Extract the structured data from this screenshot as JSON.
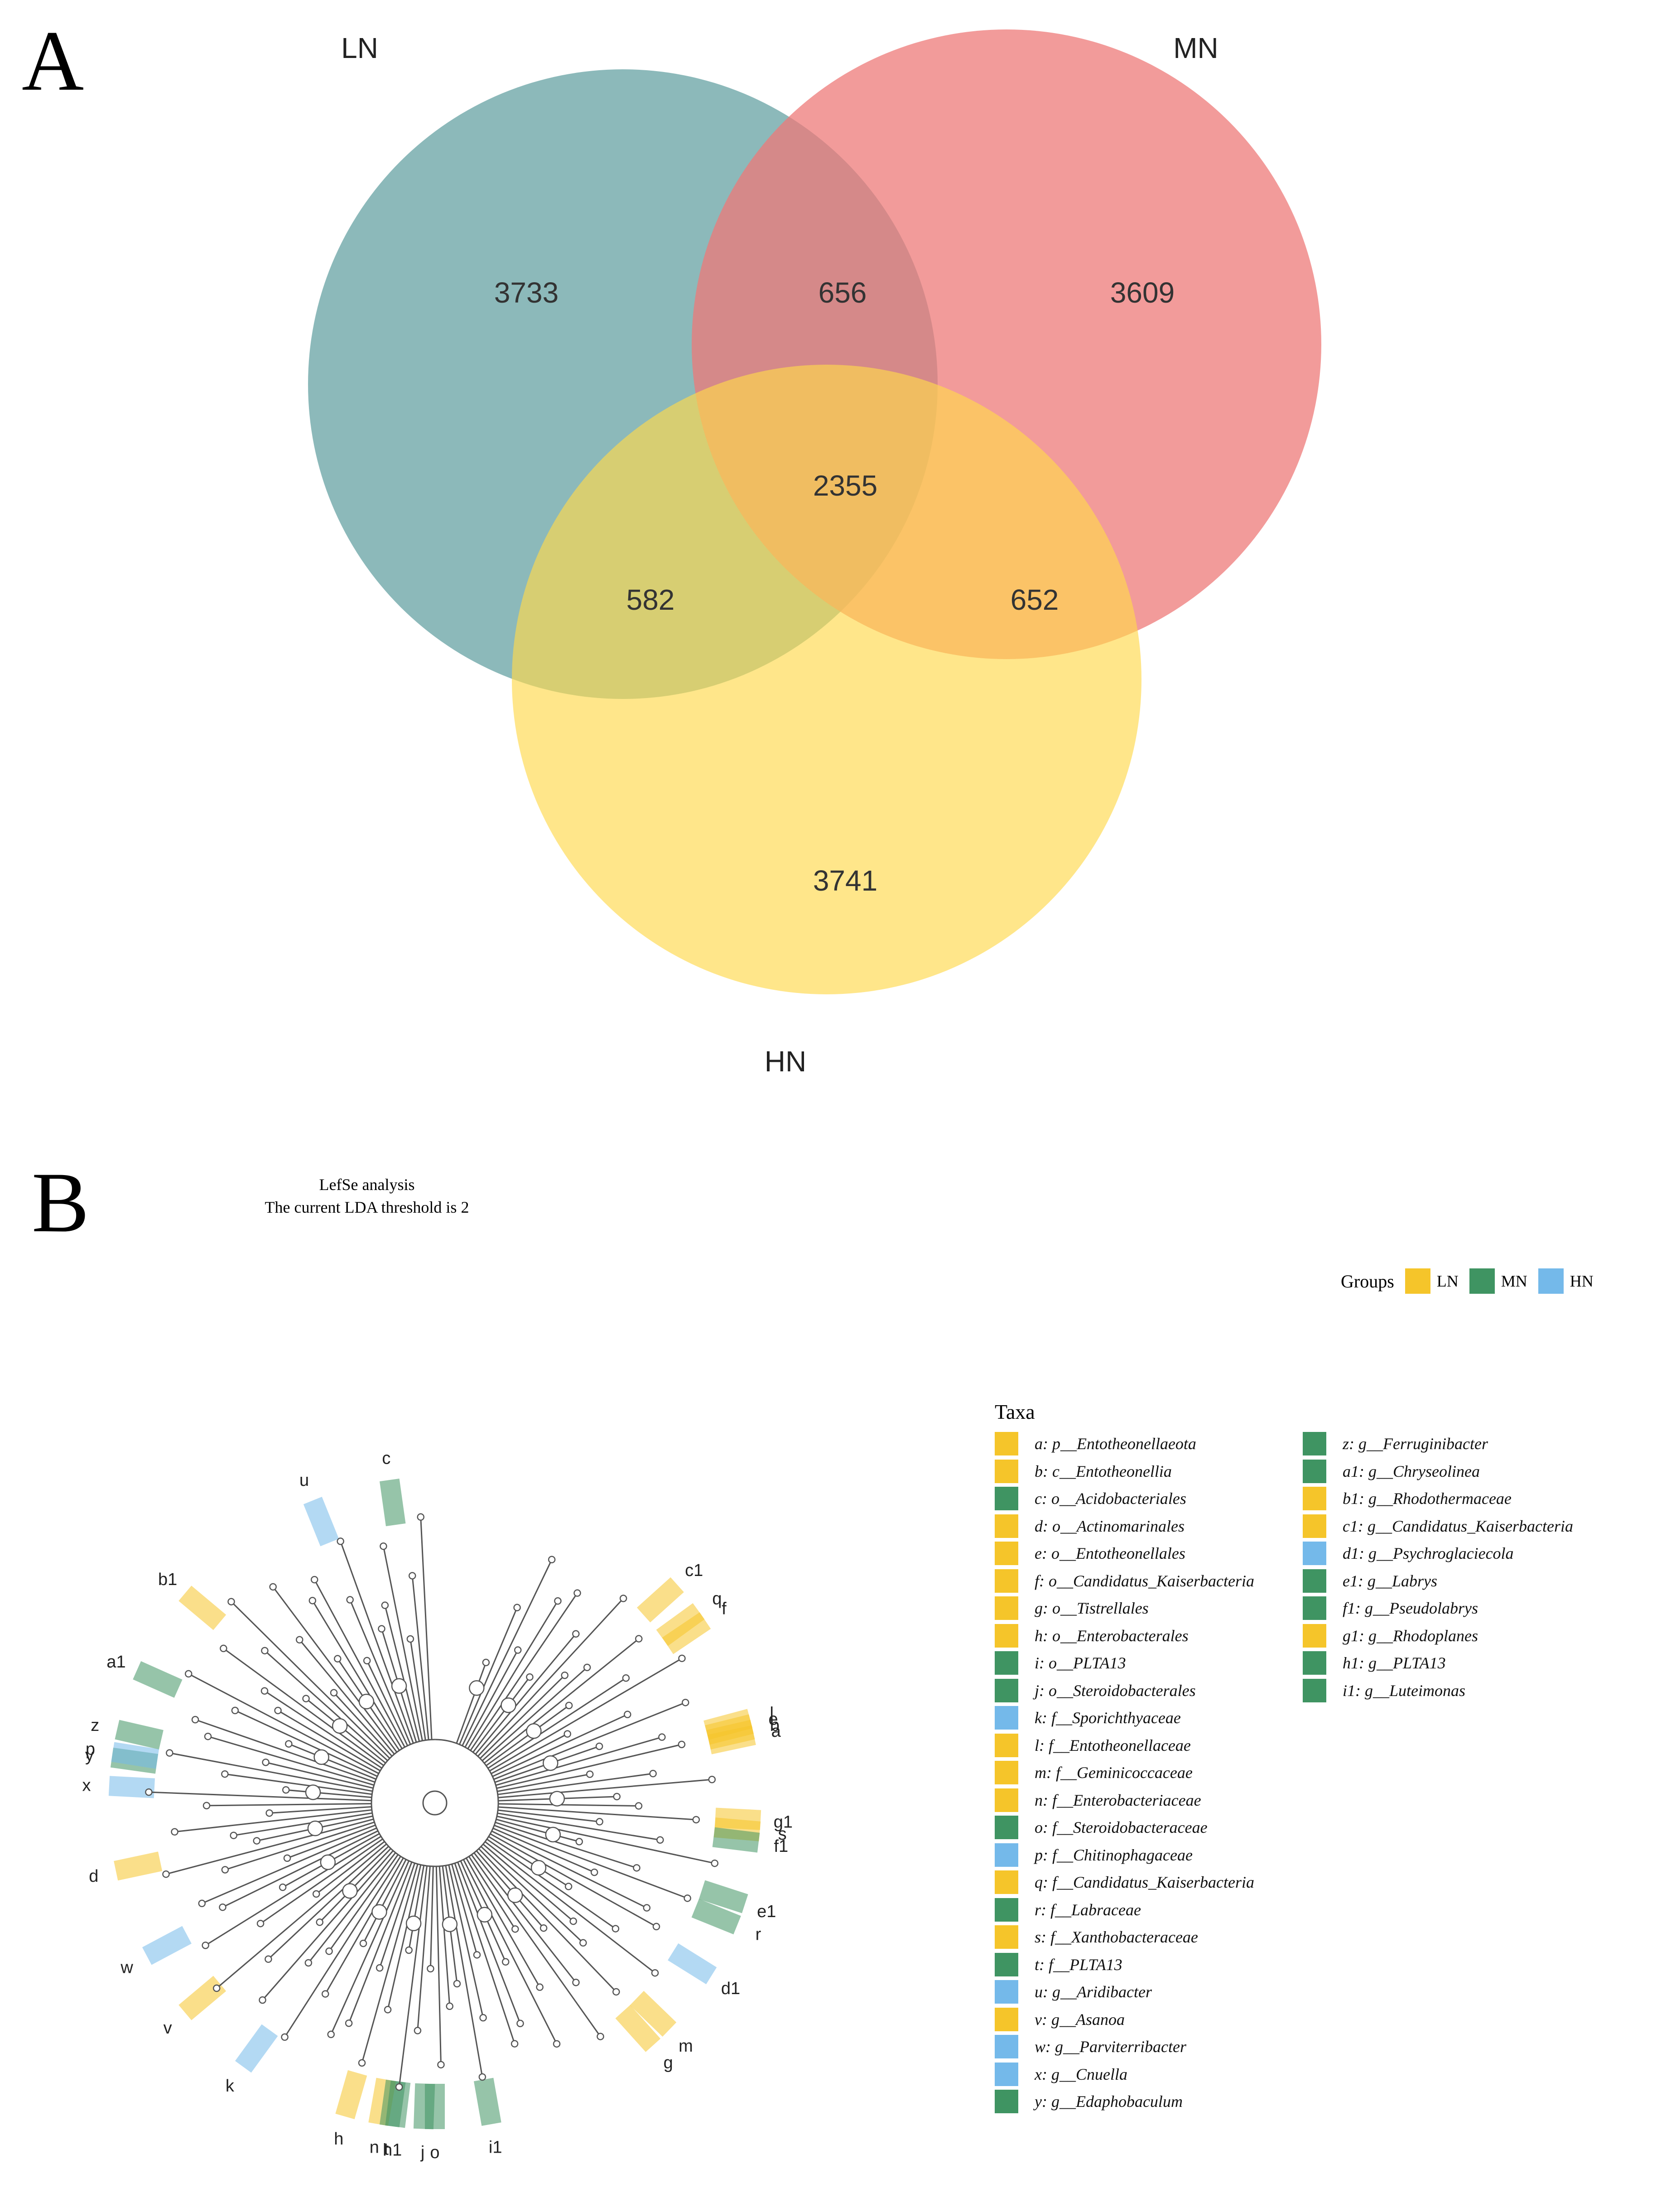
{
  "panel_a": {
    "letter": "A",
    "sets": [
      {
        "name": "LN",
        "color": "#5f9ea0"
      },
      {
        "name": "MN",
        "color": "#ee7a78"
      },
      {
        "name": "HN",
        "color": "#ffd84c"
      }
    ],
    "counts": {
      "ln_only": "3733",
      "ln_mn": "656",
      "mn_only": "3609",
      "all": "2355",
      "ln_hn": "582",
      "mn_hn": "652",
      "hn_only": "3741"
    }
  },
  "panel_b": {
    "letter": "B",
    "title_line1": "LefSe analysis",
    "title_line2": "The current LDA threshold is 2",
    "groups_label": "Groups",
    "groups": [
      {
        "name": "LN",
        "color": "#f5c52a"
      },
      {
        "name": "MN",
        "color": "#3f9462"
      },
      {
        "name": "HN",
        "color": "#74b9ea"
      }
    ],
    "taxa_title": "Taxa",
    "taxa": [
      {
        "label": "a: p__Entotheonellaeota",
        "group": "LN"
      },
      {
        "label": "b: c__Entotheonellia",
        "group": "LN"
      },
      {
        "label": "c: o__Acidobacteriales",
        "group": "MN"
      },
      {
        "label": "d: o__Actinomarinales",
        "group": "LN"
      },
      {
        "label": "e: o__Entotheonellales",
        "group": "LN"
      },
      {
        "label": "f: o__Candidatus_Kaiserbacteria",
        "group": "LN"
      },
      {
        "label": "g: o__Tistrellales",
        "group": "LN"
      },
      {
        "label": "h: o__Enterobacterales",
        "group": "LN"
      },
      {
        "label": "i: o__PLTA13",
        "group": "MN"
      },
      {
        "label": "j: o__Steroidobacterales",
        "group": "MN"
      },
      {
        "label": "k: f__Sporichthyaceae",
        "group": "HN"
      },
      {
        "label": "l: f__Entotheonellaceae",
        "group": "LN"
      },
      {
        "label": "m: f__Geminicoccaceae",
        "group": "LN"
      },
      {
        "label": "n: f__Enterobacteriaceae",
        "group": "LN"
      },
      {
        "label": "o: f__Steroidobacteraceae",
        "group": "MN"
      },
      {
        "label": "p: f__Chitinophagaceae",
        "group": "HN"
      },
      {
        "label": "q: f__Candidatus_Kaiserbacteria",
        "group": "LN"
      },
      {
        "label": "r: f__Labraceae",
        "group": "MN"
      },
      {
        "label": "s: f__Xanthobacteraceae",
        "group": "LN"
      },
      {
        "label": "t: f__PLTA13",
        "group": "MN"
      },
      {
        "label": "u: g__Aridibacter",
        "group": "HN"
      },
      {
        "label": "v: g__Asanoa",
        "group": "LN"
      },
      {
        "label": "w: g__Parviterribacter",
        "group": "HN"
      },
      {
        "label": "x: g__Cnuella",
        "group": "HN"
      },
      {
        "label": "y: g__Edaphobaculum",
        "group": "MN"
      },
      {
        "label": "z: g__Ferruginibacter",
        "group": "MN"
      },
      {
        "label": "a1: g__Chryseolinea",
        "group": "MN"
      },
      {
        "label": "b1: g__Rhodothermaceae",
        "group": "LN"
      },
      {
        "label": "c1: g__Candidatus_Kaiserbacteria",
        "group": "LN"
      },
      {
        "label": "d1: g__Psychroglaciecola",
        "group": "HN"
      },
      {
        "label": "e1: g__Labrys",
        "group": "MN"
      },
      {
        "label": "f1: g__Pseudolabrys",
        "group": "MN"
      },
      {
        "label": "g1: g__Rhodoplanes",
        "group": "LN"
      },
      {
        "label": "h1: g__PLTA13",
        "group": "MN"
      },
      {
        "label": "i1: g__Luteimonas",
        "group": "MN"
      }
    ],
    "clade_labels": [
      {
        "text": "u",
        "group": "HN"
      },
      {
        "text": "c",
        "group": "MN"
      },
      {
        "text": "b1",
        "group": "LN"
      },
      {
        "text": "a1",
        "group": "MN"
      },
      {
        "text": "x",
        "group": "HN"
      },
      {
        "text": "y",
        "group": "MN"
      },
      {
        "text": "z",
        "group": "MN"
      },
      {
        "text": "p",
        "group": "HN"
      },
      {
        "text": "d",
        "group": "LN"
      },
      {
        "text": "w",
        "group": "HN"
      },
      {
        "text": "v",
        "group": "LN"
      },
      {
        "text": "k",
        "group": "HN"
      },
      {
        "text": "h",
        "group": "LN"
      },
      {
        "text": "n",
        "group": "LN"
      },
      {
        "text": "t",
        "group": "MN"
      },
      {
        "text": "h1",
        "group": "MN"
      },
      {
        "text": "j",
        "group": "MN"
      },
      {
        "text": "o",
        "group": "MN"
      },
      {
        "text": "i1",
        "group": "MN"
      },
      {
        "text": "g",
        "group": "LN"
      },
      {
        "text": "m",
        "group": "LN"
      },
      {
        "text": "d1",
        "group": "HN"
      },
      {
        "text": "r",
        "group": "MN"
      },
      {
        "text": "e1",
        "group": "MN"
      },
      {
        "text": "s",
        "group": "LN"
      },
      {
        "text": "g1",
        "group": "LN"
      },
      {
        "text": "f1",
        "group": "MN"
      },
      {
        "text": "a",
        "group": "LN"
      },
      {
        "text": "b",
        "group": "LN"
      },
      {
        "text": "e",
        "group": "LN"
      },
      {
        "text": "l",
        "group": "LN"
      },
      {
        "text": "f",
        "group": "LN"
      },
      {
        "text": "q",
        "group": "LN"
      },
      {
        "text": "c1",
        "group": "LN"
      }
    ]
  }
}
